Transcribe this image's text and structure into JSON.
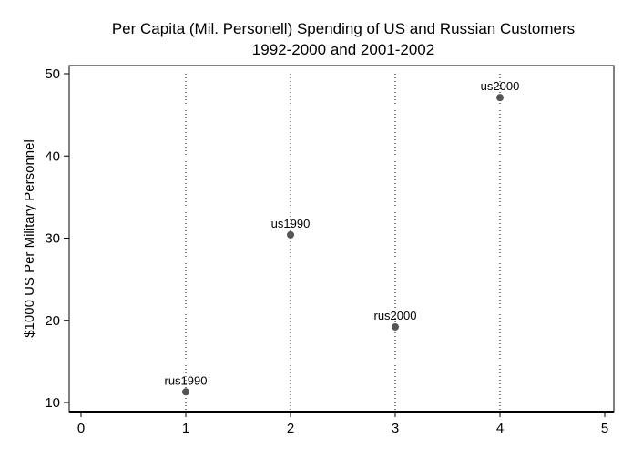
{
  "chart_data": {
    "type": "scatter",
    "title_lines": [
      "Per Capita (Mil. Personell) Spending of US and Russian Customers",
      "1992-2000 and 2001-2002"
    ],
    "xlabel": "",
    "ylabel": "$1000 US Per Military Personnel",
    "xlim": [
      0,
      5
    ],
    "ylim": [
      10,
      50
    ],
    "xticks": [
      "0",
      "1",
      "2",
      "3",
      "4",
      "5"
    ],
    "yticks": [
      "10",
      "20",
      "30",
      "40",
      "50"
    ],
    "vertical_reference_lines_x": [
      1,
      2,
      3,
      4
    ],
    "points": [
      {
        "label": "rus1990",
        "x": 1,
        "y": 11.3
      },
      {
        "label": "us1990",
        "x": 2,
        "y": 30.4
      },
      {
        "label": "rus2000",
        "x": 3,
        "y": 19.2
      },
      {
        "label": "us2000",
        "x": 4,
        "y": 47.1
      }
    ],
    "marker_color": "#555555",
    "reference_line_color": "#000000"
  }
}
